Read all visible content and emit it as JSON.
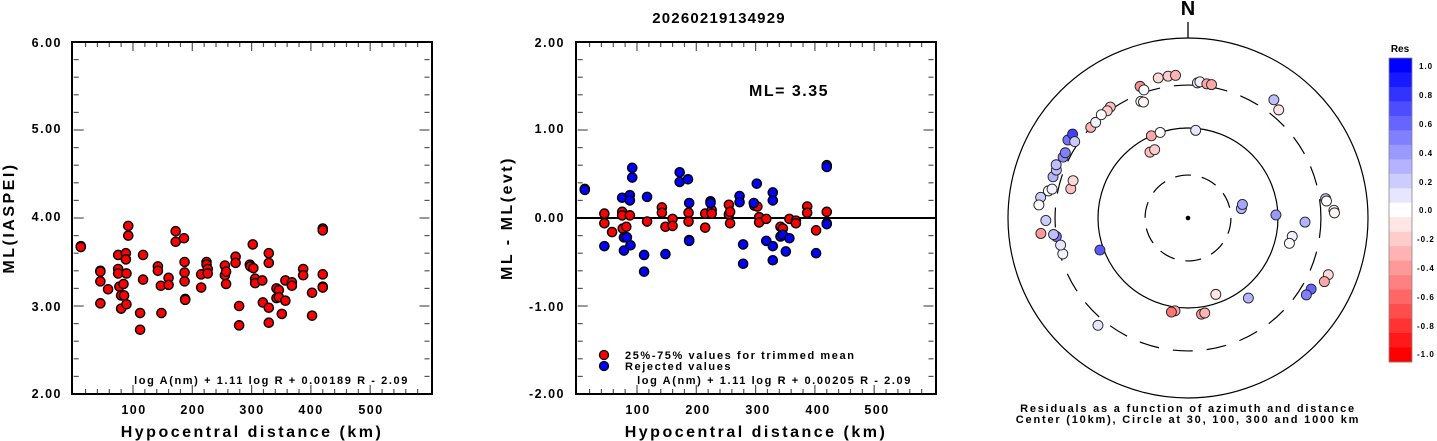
{
  "title": "20260219134929",
  "colors": {
    "accepted": "#ff0000",
    "rejected": "#0000ff",
    "marker_edge": "#000000"
  },
  "chart_data": [
    {
      "type": "scatter",
      "name": "ml-vs-distance",
      "title": "",
      "xlabel": "Hypocentral distance (km)",
      "ylabel": "ML(IASPEI)",
      "xlim": [
        0,
        600
      ],
      "ylim": [
        2.0,
        6.0
      ],
      "xticks": [
        "100",
        "200",
        "300",
        "400",
        "500"
      ],
      "xtick_values": [
        100,
        200,
        300,
        400,
        500
      ],
      "yticks": [
        "2.00",
        "3.00",
        "4.00",
        "5.00",
        "6.00"
      ],
      "ytick_values": [
        2.0,
        3.0,
        4.0,
        5.0,
        6.0
      ],
      "annotation": "log A(nm) + 1.11 log R + 0.00189 R - 2.09",
      "grid": false,
      "series": [
        {
          "name": "stations",
          "color": "#ff0000",
          "points": [
            [
              12,
              3.68
            ],
            [
              12,
              3.67
            ],
            [
              45,
              3.4
            ],
            [
              45,
              3.39
            ],
            [
              45,
              3.28
            ],
            [
              45,
              3.03
            ],
            [
              58,
              3.19
            ],
            [
              75,
              3.58
            ],
            [
              75,
              3.42
            ],
            [
              75,
              3.37
            ],
            [
              77,
              3.22
            ],
            [
              80,
              3.12
            ],
            [
              80,
              2.97
            ],
            [
              84,
              3.25
            ],
            [
              85,
              3.12
            ],
            [
              88,
              3.6
            ],
            [
              88,
              3.53
            ],
            [
              89,
              3.37
            ],
            [
              89,
              3.02
            ],
            [
              92,
              3.91
            ],
            [
              92,
              3.8
            ],
            [
              112,
              2.92
            ],
            [
              112,
              2.73
            ],
            [
              117,
              3.58
            ],
            [
              117,
              3.3
            ],
            [
              142,
              3.45
            ],
            [
              142,
              3.4
            ],
            [
              147,
              3.23
            ],
            [
              148,
              2.92
            ],
            [
              160,
              3.32
            ],
            [
              160,
              3.24
            ],
            [
              172,
              3.85
            ],
            [
              172,
              3.73
            ],
            [
              186,
              3.77
            ],
            [
              187,
              3.5
            ],
            [
              187,
              3.38
            ],
            [
              187,
              3.28
            ],
            [
              188,
              3.08
            ],
            [
              188,
              3.07
            ],
            [
              215,
              3.36
            ],
            [
              215,
              3.21
            ],
            [
              224,
              3.5
            ],
            [
              224,
              3.47
            ],
            [
              226,
              3.42
            ],
            [
              226,
              3.37
            ],
            [
              255,
              3.46
            ],
            [
              255,
              3.35
            ],
            [
              257,
              3.39
            ],
            [
              257,
              3.25
            ],
            [
              273,
              3.56
            ],
            [
              273,
              3.49
            ],
            [
              279,
              3.0
            ],
            [
              279,
              2.78
            ],
            [
              297,
              3.47
            ],
            [
              298,
              3.45
            ],
            [
              302,
              3.7
            ],
            [
              303,
              3.43
            ],
            [
              306,
              3.31
            ],
            [
              306,
              3.26
            ],
            [
              318,
              3.29
            ],
            [
              319,
              3.04
            ],
            [
              329,
              3.6
            ],
            [
              329,
              3.49
            ],
            [
              329,
              2.98
            ],
            [
              329,
              2.81
            ],
            [
              342,
              3.2
            ],
            [
              342,
              3.09
            ],
            [
              346,
              3.18
            ],
            [
              346,
              3.1
            ],
            [
              351,
              2.91
            ],
            [
              357,
              3.29
            ],
            [
              357,
              3.06
            ],
            [
              368,
              3.27
            ],
            [
              368,
              3.23
            ],
            [
              387,
              3.42
            ],
            [
              387,
              3.35
            ],
            [
              402,
              3.15
            ],
            [
              402,
              2.89
            ],
            [
              420,
              3.88
            ],
            [
              420,
              3.86
            ],
            [
              420,
              3.36
            ],
            [
              420,
              3.22
            ],
            [
              420,
              3.21
            ]
          ]
        }
      ]
    },
    {
      "type": "scatter",
      "name": "residual-vs-distance",
      "title": "",
      "xlabel": "Hypocentral distance (km)",
      "ylabel": "ML - ML(evt)",
      "xlim": [
        0,
        600
      ],
      "ylim": [
        -2.0,
        2.0
      ],
      "xticks": [
        "100",
        "200",
        "300",
        "400",
        "500"
      ],
      "xtick_values": [
        100,
        200,
        300,
        400,
        500
      ],
      "yticks": [
        "-2.00",
        "-1.00",
        "0.00",
        "1.00",
        "2.00"
      ],
      "ytick_values": [
        -2.0,
        -1.0,
        0.0,
        1.0,
        2.0
      ],
      "reference_line": 0.0,
      "ml_text": "ML= 3.35",
      "annotation": "log A(nm) + 1.11 log R + 0.00205 R - 2.09",
      "legend": {
        "position": "bottom-left",
        "entries": [
          "25%-75% values for trimmed mean",
          "Rejected values"
        ]
      },
      "grid": false,
      "series": [
        {
          "name": "25%-75% values for trimmed mean",
          "color": "#ff0000",
          "points": [
            [
              45,
              0.05
            ],
            [
              45,
              -0.06
            ],
            [
              58,
              -0.16
            ],
            [
              75,
              0.07
            ],
            [
              75,
              0.03
            ],
            [
              76,
              -0.12
            ],
            [
              82,
              -0.1
            ],
            [
              88,
              0.03
            ],
            [
              117,
              -0.04
            ],
            [
              142,
              0.12
            ],
            [
              142,
              0.06
            ],
            [
              148,
              -0.1
            ],
            [
              160,
              -0.01
            ],
            [
              160,
              -0.09
            ],
            [
              187,
              0.06
            ],
            [
              187,
              -0.04
            ],
            [
              215,
              0.05
            ],
            [
              215,
              -0.11
            ],
            [
              226,
              0.09
            ],
            [
              226,
              0.05
            ],
            [
              255,
              0.15
            ],
            [
              255,
              0.04
            ],
            [
              257,
              0.07
            ],
            [
              257,
              -0.06
            ],
            [
              298,
              0.14
            ],
            [
              303,
              0.13
            ],
            [
              306,
              0.01
            ],
            [
              306,
              -0.05
            ],
            [
              318,
              -0.01
            ],
            [
              342,
              -0.1
            ],
            [
              346,
              -0.12
            ],
            [
              357,
              -0.01
            ],
            [
              368,
              -0.03
            ],
            [
              368,
              -0.06
            ],
            [
              387,
              0.13
            ],
            [
              387,
              0.06
            ],
            [
              402,
              -0.14
            ],
            [
              420,
              0.07
            ],
            [
              420,
              -0.06
            ]
          ]
        },
        {
          "name": "Rejected values",
          "color": "#0000ff",
          "points": [
            [
              12,
              0.33
            ],
            [
              12,
              0.32
            ],
            [
              45,
              -0.32
            ],
            [
              75,
              0.23
            ],
            [
              78,
              -0.22
            ],
            [
              78,
              -0.37
            ],
            [
              83,
              -0.22
            ],
            [
              88,
              0.26
            ],
            [
              88,
              0.2
            ],
            [
              89,
              -0.31
            ],
            [
              92,
              0.57
            ],
            [
              92,
              0.46
            ],
            [
              112,
              -0.42
            ],
            [
              112,
              -0.61
            ],
            [
              117,
              0.24
            ],
            [
              148,
              -0.41
            ],
            [
              172,
              0.52
            ],
            [
              172,
              0.41
            ],
            [
              186,
              0.44
            ],
            [
              188,
              0.17
            ],
            [
              188,
              -0.25
            ],
            [
              188,
              -0.26
            ],
            [
              224,
              0.19
            ],
            [
              224,
              0.17
            ],
            [
              273,
              0.25
            ],
            [
              273,
              0.18
            ],
            [
              279,
              -0.3
            ],
            [
              279,
              -0.52
            ],
            [
              297,
              0.17
            ],
            [
              302,
              0.39
            ],
            [
              318,
              -0.26
            ],
            [
              329,
              0.29
            ],
            [
              329,
              0.2
            ],
            [
              329,
              -0.32
            ],
            [
              329,
              -0.48
            ],
            [
              342,
              -0.21
            ],
            [
              346,
              -0.19
            ],
            [
              351,
              -0.38
            ],
            [
              357,
              -0.23
            ],
            [
              402,
              -0.4
            ],
            [
              420,
              0.6
            ],
            [
              420,
              0.58
            ],
            [
              420,
              -0.07
            ]
          ]
        }
      ]
    },
    {
      "type": "scatter",
      "name": "azimuth-distance-residuals",
      "title": "",
      "north_label": "N",
      "caption": [
        "Residuals as a function of azimuth and distance",
        "Center (10km), Circle at 30, 100, 300 and 1000 km"
      ],
      "rings_km": [
        30,
        100,
        300,
        1000
      ],
      "center_km": 10,
      "colorbar": {
        "title": "Res",
        "range": [
          -1.0,
          1.0
        ],
        "ticks": [
          "1.0",
          "0.8",
          "0.6",
          "0.4",
          "0.2",
          "0.0",
          "-0.2",
          "-0.4",
          "-0.6",
          "-0.8",
          "-1.0"
        ],
        "tick_values": [
          1.0,
          0.8,
          0.6,
          0.4,
          0.2,
          0.0,
          -0.2,
          -0.4,
          -0.6,
          -0.8,
          -1.0
        ]
      },
      "points_note": "each point: [azimuth_deg, distance_km, residual]",
      "points": [
        [
          80,
          40,
          0.3
        ],
        [
          76,
          42,
          0.35
        ],
        [
          92,
          200,
          0.3
        ],
        [
          88,
          95,
          0.4
        ],
        [
          100,
          150,
          0.05
        ],
        [
          104,
          145,
          0.0
        ],
        [
          82,
          350,
          0.2
        ],
        [
          83,
          355,
          0.0
        ],
        [
          87,
          420,
          0.0
        ],
        [
          88,
          425,
          -0.05
        ],
        [
          120,
          380,
          0.6
        ],
        [
          123,
          370,
          0.5
        ],
        [
          112,
          480,
          -0.15
        ],
        [
          115,
          470,
          -0.35
        ],
        [
          143,
          130,
          0.3
        ],
        [
          160,
          80,
          -0.1
        ],
        [
          188,
          110,
          -0.35
        ],
        [
          190,
          115,
          -0.55
        ],
        [
          172,
          120,
          -0.4
        ],
        [
          170,
          118,
          -0.3
        ],
        [
          220,
          360,
          0.1
        ],
        [
          250,
          110,
          0.65
        ],
        [
          262,
          300,
          0.55
        ],
        [
          254,
          280,
          0.05
        ],
        [
          258,
          280,
          0.1
        ],
        [
          263,
          320,
          0.25
        ],
        [
          269,
          380,
          0.2
        ],
        [
          264,
          440,
          -0.4
        ],
        [
          278,
          450,
          0.2
        ],
        [
          281,
          380,
          0.0
        ],
        [
          275,
          460,
          0.0
        ],
        [
          284,
          220,
          -0.25
        ],
        [
          288,
          220,
          -0.15
        ],
        [
          282,
          350,
          0.05
        ],
        [
          287,
          370,
          0.3
        ],
        [
          290,
          360,
          0.25
        ],
        [
          292,
          380,
          0.25
        ],
        [
          296,
          350,
          0.45
        ],
        [
          298,
          350,
          0.5
        ],
        [
          303,
          390,
          0.55
        ],
        [
          306,
          385,
          0.75
        ],
        [
          304,
          330,
          0.2
        ],
        [
          313,
          300,
          -0.3
        ],
        [
          316,
          300,
          0.05
        ],
        [
          325,
          320,
          -0.25
        ],
        [
          323,
          310,
          -0.2
        ],
        [
          320,
          315,
          0.0
        ],
        [
          336,
          100,
          -0.35
        ],
        [
          342,
          100,
          0.0
        ],
        [
          330,
          70,
          -0.25
        ],
        [
          334,
          70,
          -0.2
        ],
        [
          338,
          250,
          0.0
        ],
        [
          339,
          240,
          -0.05
        ],
        [
          340,
          360,
          -0.45
        ],
        [
          341,
          320,
          0.0
        ],
        [
          348,
          390,
          -0.15
        ],
        [
          352,
          390,
          -0.2
        ],
        [
          355,
          390,
          -0.3
        ],
        [
          4,
          320,
          -0.1
        ],
        [
          5,
          330,
          0.05
        ],
        [
          8,
          320,
          -0.35
        ],
        [
          10,
          320,
          -0.35
        ],
        [
          5,
          95,
          0.1
        ],
        [
          36,
          420,
          0.25
        ],
        [
          40,
          370,
          -0.1
        ]
      ]
    }
  ]
}
